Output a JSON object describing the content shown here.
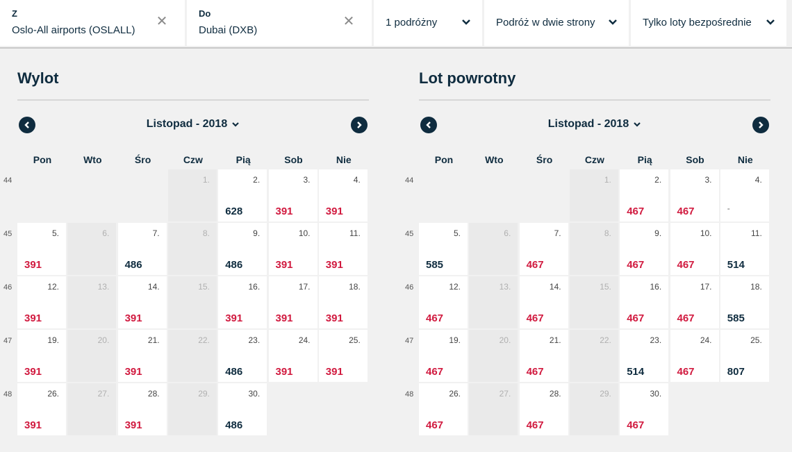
{
  "search": {
    "from_label": "Z",
    "from_value": "Oslo-All airports (OSLALL)",
    "to_label": "Do",
    "to_value": "Dubai (DXB)",
    "passengers": "1 podróżny",
    "trip_type": "Podróż w dwie strony",
    "stops": "Tylko loty bezpośrednie"
  },
  "weekdays": [
    "Pon",
    "Wto",
    "Śro",
    "Czw",
    "Pią",
    "Sob",
    "Nie"
  ],
  "weeks": [
    "44",
    "45",
    "46",
    "47",
    "48"
  ],
  "colors": {
    "price_cheap": "#d11a3f",
    "price_regular": "#0f2c3f",
    "navy": "#0f2c3f"
  },
  "departure": {
    "title": "Wylot",
    "month": "Listopad - 2018",
    "days": [
      {
        "d": "1.",
        "p": "",
        "c": "off"
      },
      {
        "d": "2.",
        "p": "628",
        "c": "dark"
      },
      {
        "d": "3.",
        "p": "391",
        "c": "red"
      },
      {
        "d": "4.",
        "p": "391",
        "c": "red"
      },
      {
        "d": "5.",
        "p": "391",
        "c": "red"
      },
      {
        "d": "6.",
        "p": "",
        "c": "off"
      },
      {
        "d": "7.",
        "p": "486",
        "c": "dark"
      },
      {
        "d": "8.",
        "p": "",
        "c": "off"
      },
      {
        "d": "9.",
        "p": "486",
        "c": "dark"
      },
      {
        "d": "10.",
        "p": "391",
        "c": "red"
      },
      {
        "d": "11.",
        "p": "391",
        "c": "red"
      },
      {
        "d": "12.",
        "p": "391",
        "c": "red"
      },
      {
        "d": "13.",
        "p": "",
        "c": "off"
      },
      {
        "d": "14.",
        "p": "391",
        "c": "red"
      },
      {
        "d": "15.",
        "p": "",
        "c": "off"
      },
      {
        "d": "16.",
        "p": "391",
        "c": "red"
      },
      {
        "d": "17.",
        "p": "391",
        "c": "red"
      },
      {
        "d": "18.",
        "p": "391",
        "c": "red"
      },
      {
        "d": "19.",
        "p": "391",
        "c": "red"
      },
      {
        "d": "20.",
        "p": "",
        "c": "off"
      },
      {
        "d": "21.",
        "p": "391",
        "c": "red"
      },
      {
        "d": "22.",
        "p": "",
        "c": "off"
      },
      {
        "d": "23.",
        "p": "486",
        "c": "dark"
      },
      {
        "d": "24.",
        "p": "391",
        "c": "red"
      },
      {
        "d": "25.",
        "p": "391",
        "c": "red"
      },
      {
        "d": "26.",
        "p": "391",
        "c": "red"
      },
      {
        "d": "27.",
        "p": "",
        "c": "off"
      },
      {
        "d": "28.",
        "p": "391",
        "c": "red"
      },
      {
        "d": "29.",
        "p": "",
        "c": "off"
      },
      {
        "d": "30.",
        "p": "486",
        "c": "dark"
      }
    ]
  },
  "return": {
    "title": "Lot powrotny",
    "month": "Listopad - 2018",
    "days": [
      {
        "d": "1.",
        "p": "",
        "c": "off"
      },
      {
        "d": "2.",
        "p": "467",
        "c": "red"
      },
      {
        "d": "3.",
        "p": "467",
        "c": "red"
      },
      {
        "d": "4.",
        "p": "-",
        "c": "dash"
      },
      {
        "d": "5.",
        "p": "585",
        "c": "dark"
      },
      {
        "d": "6.",
        "p": "",
        "c": "off"
      },
      {
        "d": "7.",
        "p": "467",
        "c": "red"
      },
      {
        "d": "8.",
        "p": "",
        "c": "off"
      },
      {
        "d": "9.",
        "p": "467",
        "c": "red"
      },
      {
        "d": "10.",
        "p": "467",
        "c": "red"
      },
      {
        "d": "11.",
        "p": "514",
        "c": "dark"
      },
      {
        "d": "12.",
        "p": "467",
        "c": "red"
      },
      {
        "d": "13.",
        "p": "",
        "c": "off"
      },
      {
        "d": "14.",
        "p": "467",
        "c": "red"
      },
      {
        "d": "15.",
        "p": "",
        "c": "off"
      },
      {
        "d": "16.",
        "p": "467",
        "c": "red"
      },
      {
        "d": "17.",
        "p": "467",
        "c": "red"
      },
      {
        "d": "18.",
        "p": "585",
        "c": "dark"
      },
      {
        "d": "19.",
        "p": "467",
        "c": "red"
      },
      {
        "d": "20.",
        "p": "",
        "c": "off"
      },
      {
        "d": "21.",
        "p": "467",
        "c": "red"
      },
      {
        "d": "22.",
        "p": "",
        "c": "off"
      },
      {
        "d": "23.",
        "p": "514",
        "c": "dark"
      },
      {
        "d": "24.",
        "p": "467",
        "c": "red"
      },
      {
        "d": "25.",
        "p": "807",
        "c": "dark"
      },
      {
        "d": "26.",
        "p": "467",
        "c": "red"
      },
      {
        "d": "27.",
        "p": "",
        "c": "off"
      },
      {
        "d": "28.",
        "p": "467",
        "c": "red"
      },
      {
        "d": "29.",
        "p": "",
        "c": "off"
      },
      {
        "d": "30.",
        "p": "467",
        "c": "red"
      }
    ]
  }
}
